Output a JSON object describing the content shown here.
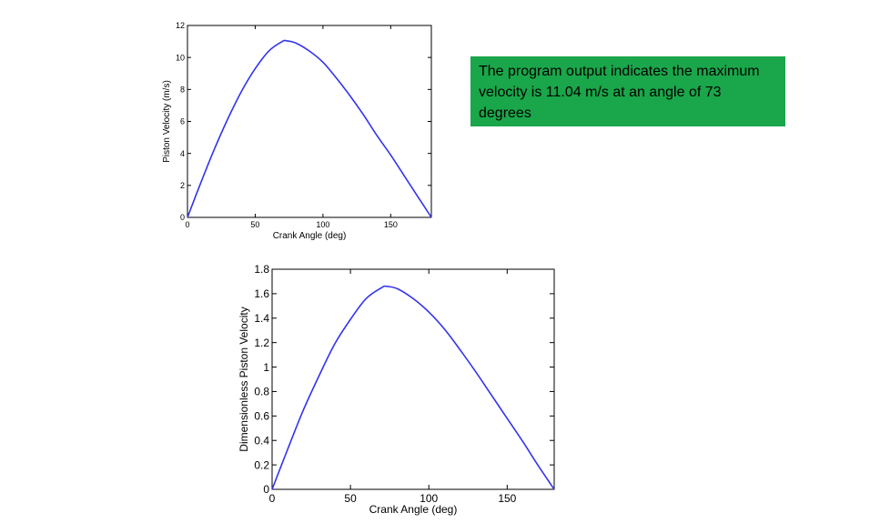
{
  "note": {
    "text": "The program output indicates the maximum velocity is 11.04 m/s at an angle of 73 degrees",
    "background": "#1aa64a"
  },
  "chart_data": [
    {
      "type": "line",
      "title": "",
      "xlabel": "Crank Angle (deg)",
      "ylabel": "Piston Velocity (m/s)",
      "xlim": [
        0,
        180
      ],
      "ylim": [
        0,
        12
      ],
      "xticks": [
        0,
        50,
        100,
        150
      ],
      "yticks": [
        0,
        2,
        4,
        6,
        8,
        10,
        12
      ],
      "grid": false,
      "series": [
        {
          "color": "#3333ee",
          "x": [
            0,
            10,
            20,
            30,
            40,
            50,
            60,
            70,
            73,
            80,
            90,
            100,
            110,
            120,
            130,
            140,
            150,
            160,
            170,
            180
          ],
          "y": [
            0,
            2.2,
            4.3,
            6.2,
            7.9,
            9.3,
            10.4,
            11.0,
            11.04,
            10.9,
            10.4,
            9.7,
            8.7,
            7.6,
            6.4,
            5.1,
            3.9,
            2.6,
            1.3,
            0
          ]
        }
      ]
    },
    {
      "type": "line",
      "title": "",
      "xlabel": "Crank Angle (deg)",
      "ylabel": "Dimensionless Piston Velocity",
      "xlim": [
        0,
        180
      ],
      "ylim": [
        0,
        1.8
      ],
      "xticks": [
        0,
        50,
        100,
        150
      ],
      "yticks": [
        0,
        0.2,
        0.4,
        0.6,
        0.8,
        1,
        1.2,
        1.4,
        1.6,
        1.8
      ],
      "grid": false,
      "series": [
        {
          "color": "#3333ee",
          "x": [
            0,
            10,
            20,
            30,
            40,
            50,
            60,
            70,
            73,
            80,
            90,
            100,
            110,
            120,
            130,
            140,
            150,
            160,
            170,
            180
          ],
          "y": [
            0,
            0.33,
            0.65,
            0.93,
            1.19,
            1.39,
            1.56,
            1.65,
            1.66,
            1.64,
            1.56,
            1.45,
            1.31,
            1.14,
            0.96,
            0.77,
            0.58,
            0.39,
            0.19,
            0
          ]
        }
      ]
    }
  ]
}
